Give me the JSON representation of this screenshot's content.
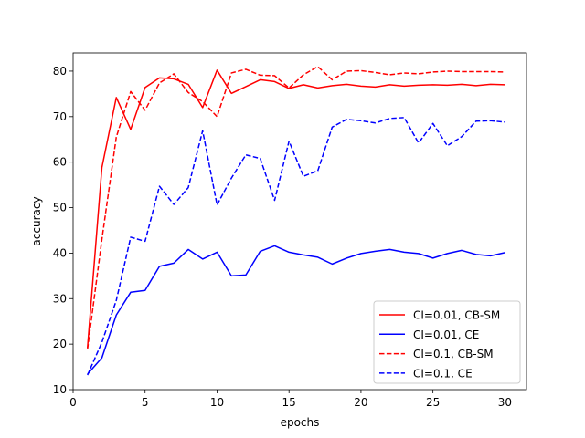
{
  "chart_data": {
    "type": "line",
    "title": "",
    "xlabel": "epochs",
    "ylabel": "accuracy",
    "xlim": [
      0,
      31.5
    ],
    "ylim": [
      10,
      84
    ],
    "xticks": [
      0,
      5,
      10,
      15,
      20,
      25,
      30
    ],
    "yticks": [
      10,
      20,
      30,
      40,
      50,
      60,
      70,
      80
    ],
    "grid": false,
    "legend_position": "lower-right",
    "x": [
      1,
      2,
      3,
      4,
      5,
      6,
      7,
      8,
      9,
      10,
      11,
      12,
      13,
      14,
      15,
      16,
      17,
      18,
      19,
      20,
      21,
      22,
      23,
      24,
      25,
      26,
      27,
      28,
      29,
      30
    ],
    "series": [
      {
        "name": "CI=0.01, CB-SM",
        "color": "#ff0000",
        "style": "solid",
        "values": [
          19.2,
          58.8,
          74.2,
          67.2,
          76.4,
          78.5,
          78.3,
          77.1,
          72.0,
          80.2,
          75.1,
          76.6,
          78.1,
          77.7,
          76.2,
          77.0,
          76.3,
          76.8,
          77.1,
          76.7,
          76.5,
          77.0,
          76.7,
          76.9,
          77.0,
          76.9,
          77.1,
          76.8,
          77.1,
          77.0
        ]
      },
      {
        "name": "CI=0.01, CE",
        "color": "#0000ff",
        "style": "solid",
        "values": [
          13.4,
          17.0,
          26.4,
          31.4,
          31.8,
          37.1,
          37.8,
          40.8,
          38.7,
          40.2,
          35.0,
          35.2,
          40.4,
          41.6,
          40.2,
          39.6,
          39.1,
          37.6,
          38.9,
          39.9,
          40.4,
          40.8,
          40.2,
          39.9,
          38.9,
          39.9,
          40.6,
          39.7,
          39.4,
          40.1
        ]
      },
      {
        "name": "CI=0.1, CB-SM",
        "color": "#ff0000",
        "style": "dashed",
        "values": [
          18.9,
          43.0,
          65.5,
          75.5,
          71.4,
          77.4,
          79.4,
          75.3,
          73.3,
          70.0,
          79.6,
          80.4,
          79.1,
          79.0,
          76.3,
          79.2,
          81.0,
          78.1,
          80.0,
          80.1,
          79.7,
          79.2,
          79.6,
          79.4,
          79.8,
          80.0,
          79.9,
          79.9,
          79.9,
          79.8
        ]
      },
      {
        "name": "CI=0.1, CE",
        "color": "#0000ff",
        "style": "dashed",
        "values": [
          13.2,
          20.4,
          29.6,
          43.5,
          42.6,
          54.7,
          50.7,
          54.4,
          66.9,
          50.6,
          56.5,
          61.6,
          60.8,
          51.6,
          64.6,
          56.9,
          58.1,
          67.7,
          69.4,
          69.1,
          68.6,
          69.6,
          69.8,
          64.2,
          68.5,
          63.6,
          65.6,
          69.0,
          69.1,
          68.8
        ]
      }
    ]
  }
}
